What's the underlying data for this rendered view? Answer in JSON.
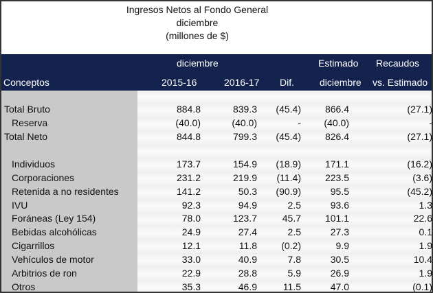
{
  "title": [
    "Ingresos Netos al Fondo General",
    "diciembre",
    "(millones de $)"
  ],
  "header": {
    "group1": "diciembre",
    "group2": "Estimado",
    "group3": "Recaudos",
    "concepts": "Conceptos",
    "col1": "2015-16",
    "col2": "2016-17",
    "col3": "Dif.",
    "col4": "diciembre",
    "col5": "vs. Estimado"
  },
  "rows": [
    {
      "label": "Total Bruto",
      "indent": false,
      "v": [
        "884.8",
        "839.3",
        "(45.4)",
        "866.4",
        "(27.1)"
      ]
    },
    {
      "label": "Reserva",
      "indent": true,
      "v": [
        "(40.0)",
        "(40.0)",
        "-",
        "(40.0)",
        "-"
      ]
    },
    {
      "label": "Total Neto",
      "indent": false,
      "v": [
        "844.8",
        "799.3",
        "(45.4)",
        "826.4",
        "(27.1)"
      ]
    },
    {
      "label": "Individuos",
      "indent": true,
      "v": [
        "173.7",
        "154.9",
        "(18.9)",
        "171.1",
        "(16.2)"
      ]
    },
    {
      "label": "Corporaciones",
      "indent": true,
      "v": [
        "231.2",
        "219.9",
        "(11.4)",
        "223.5",
        "(3.6)"
      ]
    },
    {
      "label": "Retenida a no residentes",
      "indent": true,
      "v": [
        "141.2",
        "50.3",
        "(90.9)",
        "95.5",
        "(45.2)"
      ]
    },
    {
      "label": "IVU",
      "indent": true,
      "v": [
        "92.3",
        "94.9",
        "2.5",
        "93.6",
        "1.3"
      ]
    },
    {
      "label": "Foráneas (Ley 154)",
      "indent": true,
      "v": [
        "78.0",
        "123.7",
        "45.7",
        "101.1",
        "22.6"
      ]
    },
    {
      "label": "Bebidas alcohólicas",
      "indent": true,
      "v": [
        "24.9",
        "27.4",
        "2.5",
        "27.3",
        "0.1"
      ]
    },
    {
      "label": "Cigarrillos",
      "indent": true,
      "v": [
        "12.1",
        "11.8",
        "(0.2)",
        "9.9",
        "1.9"
      ]
    },
    {
      "label": "Vehículos de motor",
      "indent": true,
      "v": [
        "33.0",
        "40.9",
        "7.8",
        "30.5",
        "10.4"
      ]
    },
    {
      "label": "Arbitrios de ron",
      "indent": true,
      "v": [
        "22.9",
        "28.8",
        "5.9",
        "26.9",
        "1.9"
      ]
    },
    {
      "label": "Otros",
      "indent": true,
      "v": [
        "35.3",
        "46.9",
        "11.5",
        "47.0",
        "(0.1)"
      ]
    }
  ]
}
